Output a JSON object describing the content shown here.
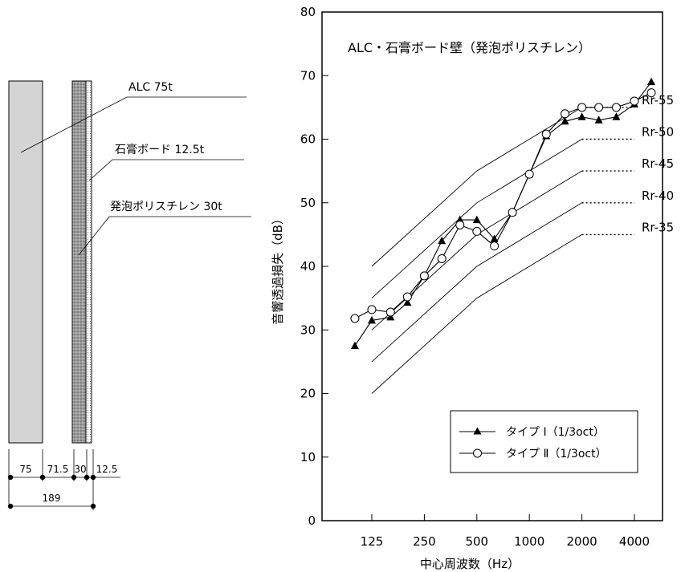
{
  "diagram": {
    "layer_labels": [
      "ALC 75t",
      "石膏ボード 12.5t",
      "発泡ポリスチレン 30t"
    ],
    "dimension_labels": [
      "75",
      "71.5",
      "30",
      "12.5"
    ],
    "total_label": "189"
  },
  "colors": {
    "alc_fill": "#d4d4d4",
    "foam_fill": "#9a9a9a",
    "line": "#000000",
    "background": "#ffffff"
  },
  "chart_data": {
    "type": "line",
    "title": "ALC・石膏ボード壁（発泡ポリスチレン）",
    "xlabel": "中心周波数（Hz）",
    "ylabel": "音響透過損失（dB）",
    "x_scale": "log2",
    "x_ticks": [
      125,
      250,
      500,
      1000,
      2000,
      4000
    ],
    "xlim": [
      80,
      6300
    ],
    "ylim": [
      0,
      80
    ],
    "y_ticks": [
      0,
      10,
      20,
      30,
      40,
      50,
      60,
      70,
      80
    ],
    "grid": false,
    "legend_position": "bottom-right",
    "series": [
      {
        "name": "タイプ Ⅰ（1/3oct）",
        "marker": "filled-triangle",
        "x": [
          100,
          125,
          160,
          200,
          250,
          315,
          400,
          500,
          630,
          800,
          1000,
          1250,
          1600,
          2000,
          2500,
          3150,
          4000,
          5000
        ],
        "values": [
          27.5,
          31.5,
          32.0,
          34.3,
          38.5,
          44.0,
          47.3,
          47.3,
          44.3,
          48.5,
          54.5,
          60.5,
          62.8,
          63.5,
          63.0,
          63.5,
          65.5,
          69.0
        ]
      },
      {
        "name": "タイプ Ⅱ（1/3oct）",
        "marker": "open-circle",
        "x": [
          100,
          125,
          160,
          200,
          250,
          315,
          400,
          500,
          630,
          800,
          1000,
          1250,
          1600,
          2000,
          2500,
          3150,
          4000,
          5000
        ],
        "values": [
          31.8,
          33.2,
          32.8,
          35.2,
          38.5,
          41.2,
          46.5,
          45.5,
          43.2,
          48.5,
          54.5,
          60.8,
          64.0,
          65.0,
          65.0,
          65.0,
          66.0,
          67.3
        ]
      }
    ],
    "reference_curves": [
      {
        "name": "Rr-55",
        "x": [
          125,
          250,
          500,
          1000,
          2000,
          4000
        ],
        "values": [
          40,
          47.5,
          55,
          60,
          65,
          65
        ]
      },
      {
        "name": "Rr-50",
        "x": [
          125,
          250,
          500,
          1000,
          2000,
          4000
        ],
        "values": [
          35,
          42.5,
          50,
          55,
          60,
          60
        ]
      },
      {
        "name": "Rr-45",
        "x": [
          125,
          250,
          500,
          1000,
          2000,
          4000
        ],
        "values": [
          30,
          37.5,
          45,
          50,
          55,
          55
        ]
      },
      {
        "name": "Rr-40",
        "x": [
          125,
          250,
          500,
          1000,
          2000,
          4000
        ],
        "values": [
          25,
          32.5,
          40,
          45,
          50,
          50
        ]
      },
      {
        "name": "Rr-35",
        "x": [
          125,
          250,
          500,
          1000,
          2000,
          4000
        ],
        "values": [
          20,
          27.5,
          35,
          40,
          45,
          45
        ]
      }
    ]
  }
}
